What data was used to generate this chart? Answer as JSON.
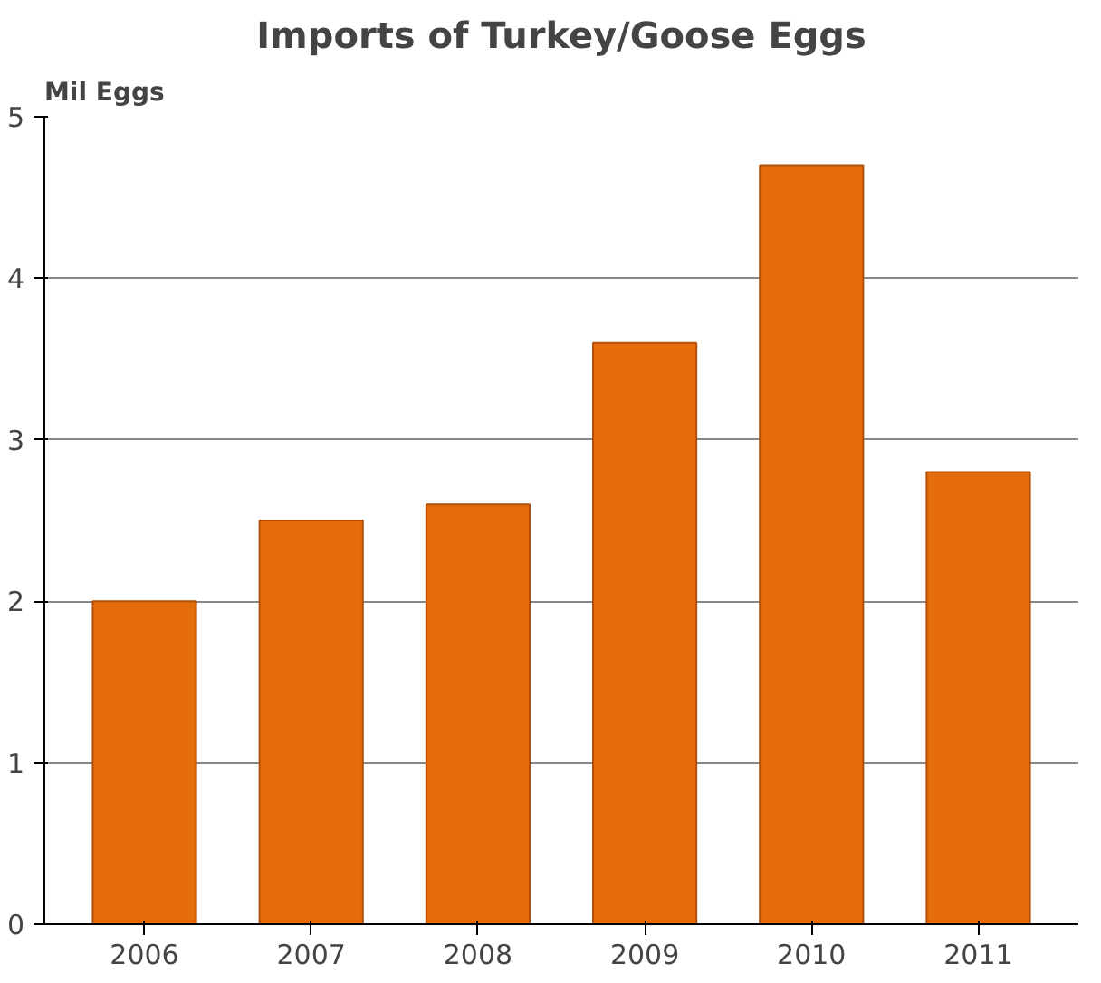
{
  "chart_data": {
    "type": "bar",
    "title": "Imports of Turkey/Goose Eggs",
    "ylabel": "Mil Eggs",
    "categories": [
      "2006",
      "2007",
      "2008",
      "2009",
      "2010",
      "2011"
    ],
    "values": [
      2.0,
      2.5,
      2.6,
      3.6,
      4.7,
      2.8
    ],
    "color": "#e46c0a",
    "ylim": [
      0,
      5
    ],
    "yticks": [
      0,
      1,
      2,
      3,
      4,
      5
    ],
    "grid": "y"
  }
}
